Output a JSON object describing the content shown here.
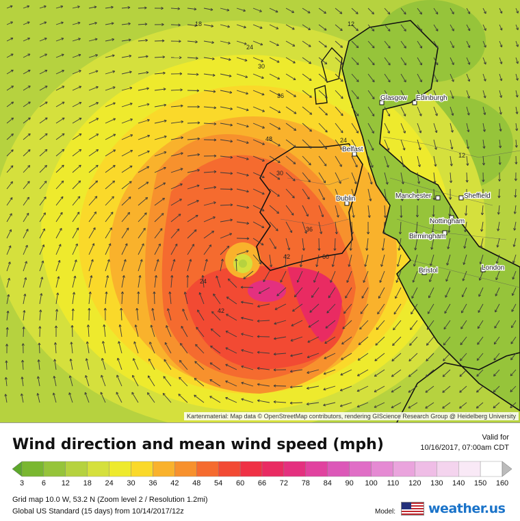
{
  "map": {
    "attribution": "Kartenmaterial: Map data © OpenStreetMap contributors, rendering GIScience Research Group @ Heidelberg University",
    "cities": [
      {
        "name": "Glasgow"
      },
      {
        "name": "Edinburgh"
      },
      {
        "name": "Belfast"
      },
      {
        "name": "Dublin"
      },
      {
        "name": "Manchester"
      },
      {
        "name": "Sheffield"
      },
      {
        "name": "Nottingham"
      },
      {
        "name": "Birmingham"
      },
      {
        "name": "Bristol"
      },
      {
        "name": "London"
      }
    ],
    "contour_labels": [
      "18",
      "12",
      "24",
      "30",
      "36",
      "48",
      "24",
      "30",
      "36",
      "42",
      "60",
      "24",
      "42",
      "12"
    ]
  },
  "legend": {
    "title": "Wind direction and mean wind speed (mph)",
    "valid_label": "Valid for",
    "valid_time": "10/16/2017, 07:00am CDT",
    "ticks": [
      "3",
      "6",
      "12",
      "18",
      "24",
      "30",
      "36",
      "42",
      "48",
      "54",
      "60",
      "66",
      "72",
      "78",
      "84",
      "90",
      "100",
      "110",
      "120",
      "130",
      "140",
      "150",
      "160"
    ],
    "colors": [
      "#5da82b",
      "#7ab730",
      "#96c43a",
      "#b6d23f",
      "#d5e03d",
      "#eeea2d",
      "#fad92a",
      "#f9b22c",
      "#f7912d",
      "#f56b2f",
      "#f24a33",
      "#ef3145",
      "#e92b62",
      "#e4307f",
      "#e1429f",
      "#dc58b8",
      "#e06ec6",
      "#e58ad3",
      "#eaa4dd",
      "#efbde6",
      "#f4d4ee",
      "#f9e9f6",
      "#ffffff"
    ]
  },
  "footer": {
    "grid": "Grid map 10.0 W, 53.2 N (Zoom level 2 / Resolution 1.2mi)",
    "model_run": "Global US Standard (15 days) from 10/14/2017/12z",
    "model_label": "Model:",
    "brand": "weather.us"
  }
}
